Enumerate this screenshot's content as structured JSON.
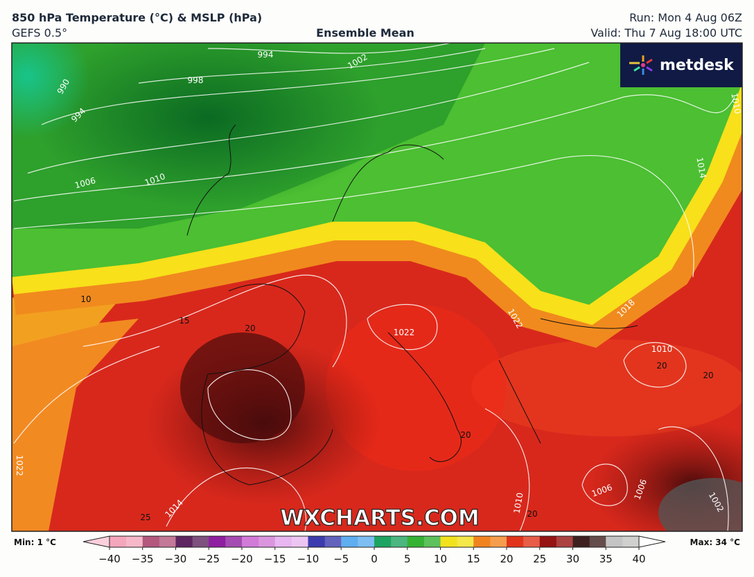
{
  "header": {
    "title": "850 hPa Temperature (°C) & MSLP (hPa)",
    "model": "GEFS 0.5°",
    "product": "Ensemble Mean",
    "run": "Run: Mon 4 Aug 06Z",
    "valid": "Valid: Thu 7 Aug 18:00 UTC"
  },
  "logo": "metdesk",
  "watermark": "WXCHARTS.COM",
  "contour_labels": [
    994,
    998,
    1002,
    990,
    994,
    1006,
    1010,
    1010,
    1014,
    10,
    15,
    20,
    1018,
    1022,
    1022,
    1010,
    20,
    20,
    20,
    1022,
    1014,
    1006,
    1006,
    1002,
    1010,
    20,
    25
  ],
  "colorbar": {
    "min_label": "Min: 1 °C",
    "max_label": "Max: 34 °C",
    "ticks": [
      {
        "value": -40,
        "label": "−40"
      },
      {
        "value": -35,
        "label": "−35"
      },
      {
        "value": -30,
        "label": "−30"
      },
      {
        "value": -25,
        "label": "−25"
      },
      {
        "value": -20,
        "label": "−20"
      },
      {
        "value": -15,
        "label": "−15"
      },
      {
        "value": -10,
        "label": "−10"
      },
      {
        "value": -5,
        "label": "−5"
      },
      0,
      5,
      10,
      15,
      20,
      25,
      30,
      35,
      40
    ],
    "colors": [
      "#f4a6bc",
      "#b4587e",
      "#5e2560",
      "#8e1fa0",
      "#d27ad8",
      "#e8b6f0",
      "#3c3cae",
      "#5eaef0",
      "#1ea462",
      "#34b234",
      "#f2e21e",
      "#f28420",
      "#e2341a",
      "#961414",
      "#3e2020",
      "#c4c4c4"
    ]
  }
}
